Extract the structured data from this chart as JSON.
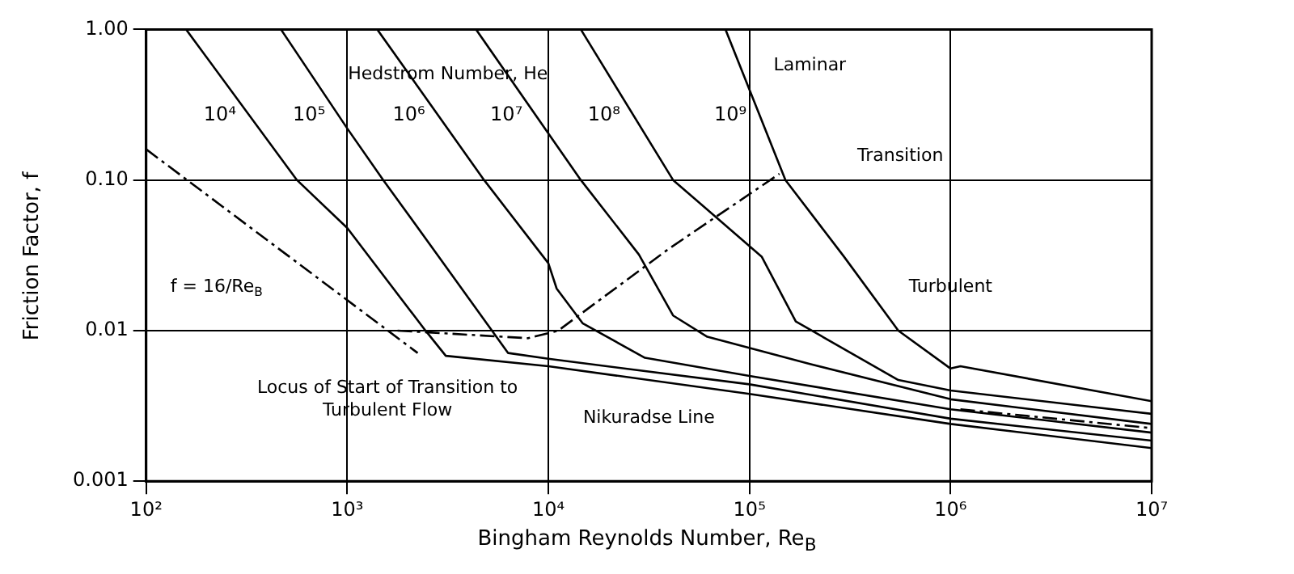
{
  "chart_data": {
    "type": "line",
    "xlabel": "Bingham Reynolds Number, Re$_{B}$",
    "ylabel": "Friction Factor, f",
    "log": "xy",
    "grid": true,
    "legend": false,
    "marker": "none",
    "xlim": [
      100,
      10000000
    ],
    "ylim": [
      0.001,
      1
    ],
    "xticks": [
      {
        "value": 100,
        "label": "10²"
      },
      {
        "value": 1000,
        "label": "10³"
      },
      {
        "value": 10000,
        "label": "10⁴"
      },
      {
        "value": 100000,
        "label": "10⁵"
      },
      {
        "value": 1000000,
        "label": "10⁶"
      },
      {
        "value": 10000000,
        "label": "10⁷"
      }
    ],
    "yticks": [
      {
        "value": 0.001,
        "label": "0.001"
      },
      0.01,
      {
        "value": 0.1,
        "label": "0.10"
      },
      {
        "value": 1,
        "label": "1.00"
      }
    ],
    "series": [
      {
        "name": "10⁴",
        "color": "#000000",
        "line_style": "solid",
        "x": [
          158,
          562,
          1000,
          2450,
          3090,
          10000,
          100000,
          1000000,
          10000000
        ],
        "values": [
          1.0,
          0.1,
          0.048,
          0.01,
          0.0068,
          0.0058,
          0.0038,
          0.0024,
          0.00166
        ]
      },
      {
        "name": "10⁵",
        "color": "#000000",
        "line_style": "solid",
        "x": [
          468,
          1000,
          1510,
          2850,
          6310,
          10000,
          100000,
          1000000,
          10000000
        ],
        "values": [
          1.0,
          0.22,
          0.1,
          0.031,
          0.0071,
          0.0065,
          0.0044,
          0.0026,
          0.00186
        ]
      },
      {
        "name": "10⁶",
        "color": "#000000",
        "line_style": "solid",
        "x": [
          1410,
          4790,
          10000,
          11000,
          14800,
          30200,
          100000,
          1000000,
          10000000
        ],
        "values": [
          1.0,
          0.1,
          0.028,
          0.019,
          0.0112,
          0.0066,
          0.005,
          0.003,
          0.0021
        ]
      },
      {
        "name": "10⁷",
        "color": "#000000",
        "line_style": "solid",
        "x": [
          4370,
          14500,
          28200,
          41700,
          61700,
          200000,
          1000000,
          10000000
        ],
        "values": [
          1.0,
          0.1,
          0.032,
          0.0126,
          0.0091,
          0.006,
          0.0035,
          0.0024
        ]
      },
      {
        "name": "10⁸",
        "color": "#000000",
        "line_style": "solid",
        "x": [
          14500,
          41700,
          115000,
          170000,
          550000,
          1000000,
          10000000
        ],
        "values": [
          1.0,
          0.1,
          0.031,
          0.0115,
          0.0047,
          0.004,
          0.0028
        ]
      },
      {
        "name": "10⁹",
        "color": "#000000",
        "line_style": "solid",
        "x": [
          76000,
          151000,
          295000,
          550000,
          1000000,
          1120000,
          10000000
        ],
        "values": [
          1.0,
          0.1,
          0.031,
          0.01,
          0.0056,
          0.0058,
          0.0034
        ]
      },
      {
        "color": "#000000",
        "line_style": "dashed",
        "x": [
          100,
          2240
        ],
        "values": [
          0.16,
          0.0071
        ]
      },
      {
        "color": "#000000",
        "line_style": "dashed",
        "x": [
          1780,
          7940,
          11200,
          39800,
          141000
        ],
        "values": [
          0.01,
          0.0089,
          0.01,
          0.035,
          0.11
        ]
      },
      {
        "color": "#000000",
        "line_style": "dashed",
        "x": [
          1120000,
          10000000
        ],
        "values": [
          0.003,
          0.00225
        ]
      }
    ],
    "annotations": [
      "Hedstrom Number, He",
      "Laminar",
      "Transition",
      "Turbulent",
      "f = 16/Re$_{B}$",
      "Locus of Start of Transition to Turbulent Flow",
      "Nikuradse Line"
    ]
  }
}
